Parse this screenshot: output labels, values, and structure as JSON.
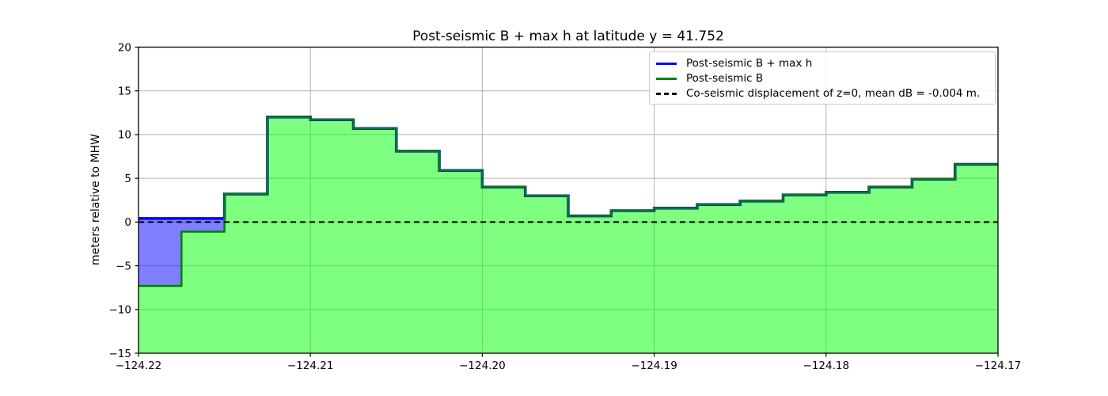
{
  "chart_data": {
    "type": "area",
    "title": "Post-seismic B + max h at latitude y = 41.752",
    "xlabel": "",
    "ylabel": "meters relative to MHW",
    "xlim": [
      -124.22,
      -124.17
    ],
    "ylim": [
      -15,
      20
    ],
    "grid": true,
    "grid_color": "#b0b0b0",
    "x_tick_values": [
      -124.22,
      -124.21,
      -124.2,
      -124.19,
      -124.18,
      -124.17
    ],
    "x_tick_labels": [
      "−124.22",
      "−124.21",
      "−124.20",
      "−124.19",
      "−124.18",
      "−124.17"
    ],
    "y_tick_values": [
      -15,
      -10,
      -5,
      0,
      5,
      10,
      15,
      20
    ],
    "y_tick_labels": [
      "−15",
      "−10",
      "−5",
      "0",
      "5",
      "10",
      "15",
      "20"
    ],
    "x_edges": [
      -124.22,
      -124.2175,
      -124.215,
      -124.2125,
      -124.21,
      -124.2075,
      -124.205,
      -124.2025,
      -124.2,
      -124.1975,
      -124.195,
      -124.1925,
      -124.19,
      -124.1875,
      -124.185,
      -124.1825,
      -124.18,
      -124.1775,
      -124.175,
      -124.1725,
      -124.17
    ],
    "series": [
      {
        "name": "Post-seismic B + max h",
        "line_color": "#0000ff",
        "fill_color": "rgba(0,0,255,0.5)",
        "values": [
          0.4,
          0.4,
          3.2,
          12.0,
          11.7,
          10.7,
          8.1,
          5.9,
          4.0,
          3.0,
          0.7,
          1.3,
          1.6,
          2.0,
          2.4,
          3.1,
          3.4,
          4.0,
          4.9,
          6.6
        ]
      },
      {
        "name": "Post-seismic B",
        "line_color": "#008000",
        "fill_color": "rgba(0,255,0,0.5)",
        "values": [
          -7.3,
          -1.1,
          3.2,
          12.0,
          11.7,
          10.7,
          8.1,
          5.9,
          4.0,
          3.0,
          0.7,
          1.3,
          1.6,
          2.0,
          2.4,
          3.1,
          3.4,
          4.0,
          4.9,
          6.6
        ]
      }
    ],
    "reference_line": {
      "y": 0,
      "color": "#000000",
      "style": "dashed",
      "label": "Co-seismic displacement of z=0, mean dB = -0.004 m."
    },
    "legend": {
      "position": "upper right",
      "entries": [
        {
          "label": "Post-seismic B + max h",
          "color": "#0000ff",
          "dash": false
        },
        {
          "label": "Post-seismic B",
          "color": "#008000",
          "dash": false
        },
        {
          "label": "Co-seismic displacement of z=0, mean dB = -0.004 m.",
          "color": "#000000",
          "dash": true
        }
      ]
    }
  }
}
